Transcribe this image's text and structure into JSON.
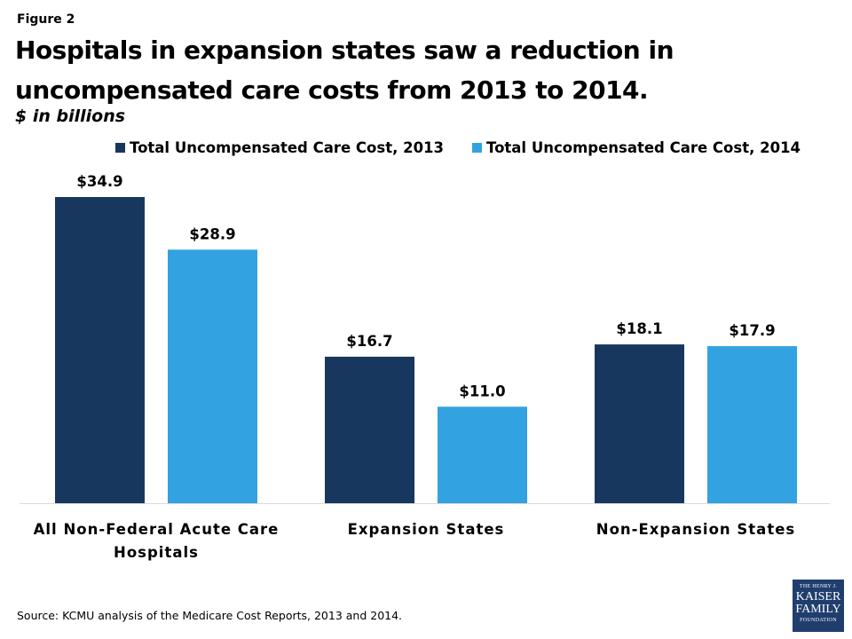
{
  "figure_label": "Figure 2",
  "source": "Source:  KCMU analysis of the Medicare Cost Reports, 2013 and 2014.",
  "logo": {
    "line1": "THE HENRY J.",
    "line2": "KAISER",
    "line3": "FAMILY",
    "line4": "FOUNDATION"
  },
  "chart_data": {
    "type": "bar",
    "title": "Hospitals in expansion states saw a reduction in uncompensated care costs from 2013 to 2014.",
    "subtitle": "$ in billions",
    "categories": [
      "All Non-Federal Acute Care Hospitals",
      "Expansion States",
      "Non-Expansion States"
    ],
    "series": [
      {
        "name": "Total Uncompensated Care Cost, 2013",
        "color": "#17375e",
        "values": [
          34.9,
          16.7,
          18.1
        ],
        "labels": [
          "$34.9",
          "$16.7",
          "$18.1"
        ]
      },
      {
        "name": "Total Uncompensated Care Cost, 2014",
        "color": "#33a2e0",
        "values": [
          28.9,
          11.0,
          17.9
        ],
        "labels": [
          "$28.9",
          "$11.0",
          "$17.9"
        ]
      }
    ],
    "legend": "top",
    "grid": false,
    "ylim": [
      0,
      35
    ]
  }
}
